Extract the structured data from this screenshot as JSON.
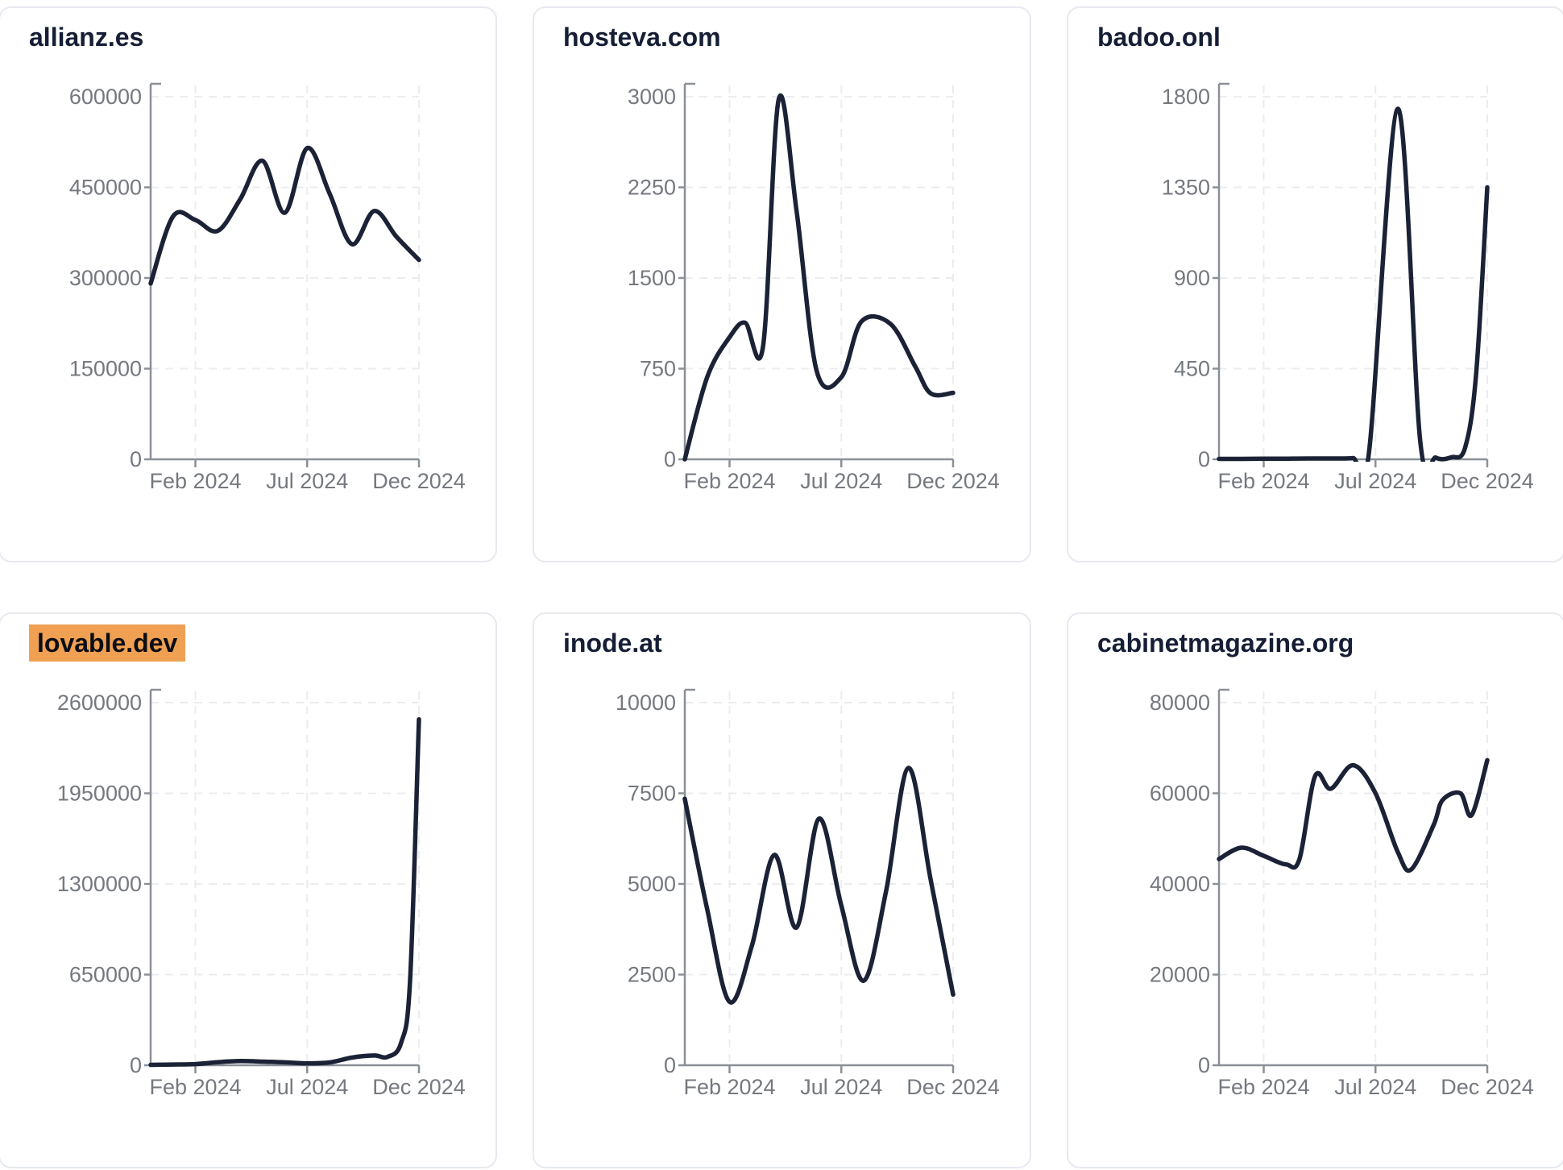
{
  "theme": {
    "line_color": "#1c2236",
    "title_color": "#161e36",
    "axis_color": "#8b9097",
    "tick_label_color": "#75797f",
    "gridline_color": "#ececf0",
    "card_border": "#e7e9f0",
    "highlight_bg": "#f0a053",
    "highlight_text": "#0b0e14",
    "background": "#ffffff"
  },
  "chart_data": [
    {
      "type": "line",
      "title": "allianz.es",
      "highlighted": false,
      "legend": "none",
      "grid": "dashed",
      "ylim": [
        0,
        600000
      ],
      "y_ticks": [
        0,
        150000,
        300000,
        450000,
        600000
      ],
      "x_ticks": [
        {
          "label": "Feb 2024",
          "month": 2
        },
        {
          "label": "Jul 2024",
          "month": 7
        },
        {
          "label": "Dec 2024",
          "month": 12
        }
      ],
      "points": [
        [
          0,
          291000
        ],
        [
          1,
          402000
        ],
        [
          2,
          396000
        ],
        [
          3,
          378000
        ],
        [
          4,
          430000
        ],
        [
          5,
          494000
        ],
        [
          6,
          408000
        ],
        [
          7,
          515000
        ],
        [
          8,
          440000
        ],
        [
          9,
          356000
        ],
        [
          10,
          411000
        ],
        [
          11,
          368000
        ],
        [
          12,
          330000
        ]
      ]
    },
    {
      "type": "line",
      "title": "hosteva.com",
      "highlighted": false,
      "legend": "none",
      "grid": "dashed",
      "ylim": [
        0,
        3000
      ],
      "y_ticks": [
        0,
        750,
        1500,
        2250,
        3000
      ],
      "x_ticks": [
        {
          "label": "Feb 2024",
          "month": 2
        },
        {
          "label": "Jul 2024",
          "month": 7
        },
        {
          "label": "Dec 2024",
          "month": 12
        }
      ],
      "points": [
        [
          0,
          0
        ],
        [
          1,
          680
        ],
        [
          2,
          1010
        ],
        [
          2.7,
          1130
        ],
        [
          3.5,
          935
        ],
        [
          4.2,
          2980
        ],
        [
          5,
          2050
        ],
        [
          5.9,
          730
        ],
        [
          7,
          680
        ],
        [
          7.9,
          1140
        ],
        [
          9.2,
          1120
        ],
        [
          10.3,
          770
        ],
        [
          11,
          545
        ],
        [
          12,
          550
        ]
      ]
    },
    {
      "type": "line",
      "title": "badoo.onl",
      "highlighted": false,
      "legend": "none",
      "grid": "dashed",
      "ylim": [
        0,
        1800
      ],
      "y_ticks": [
        0,
        450,
        900,
        1350,
        1800
      ],
      "x_ticks": [
        {
          "label": "Feb 2024",
          "month": 2
        },
        {
          "label": "Jul 2024",
          "month": 7
        },
        {
          "label": "Dec 2024",
          "month": 12
        }
      ],
      "points": [
        [
          0,
          2
        ],
        [
          1,
          2
        ],
        [
          2,
          3
        ],
        [
          3,
          3
        ],
        [
          4,
          4
        ],
        [
          5,
          4
        ],
        [
          6,
          6
        ],
        [
          6.7,
          25
        ],
        [
          8,
          1740
        ],
        [
          9,
          90
        ],
        [
          9.7,
          8
        ],
        [
          10.4,
          10
        ],
        [
          11,
          55
        ],
        [
          11.5,
          420
        ],
        [
          12,
          1350
        ]
      ]
    },
    {
      "type": "line",
      "title": "lovable.dev",
      "highlighted": true,
      "legend": "none",
      "grid": "dashed",
      "ylim": [
        0,
        2600000
      ],
      "y_ticks": [
        0,
        650000,
        1300000,
        1950000,
        2600000
      ],
      "x_ticks": [
        {
          "label": "Feb 2024",
          "month": 2
        },
        {
          "label": "Jul 2024",
          "month": 7
        },
        {
          "label": "Dec 2024",
          "month": 12
        }
      ],
      "points": [
        [
          0,
          3000
        ],
        [
          1,
          5000
        ],
        [
          2,
          8000
        ],
        [
          3,
          22000
        ],
        [
          4,
          30000
        ],
        [
          5,
          26000
        ],
        [
          6,
          21000
        ],
        [
          7,
          14000
        ],
        [
          8,
          20000
        ],
        [
          9,
          55000
        ],
        [
          10,
          70000
        ],
        [
          10.6,
          60000
        ],
        [
          11.2,
          160000
        ],
        [
          11.6,
          600000
        ],
        [
          12,
          2480000
        ]
      ]
    },
    {
      "type": "line",
      "title": "inode.at",
      "highlighted": false,
      "legend": "none",
      "grid": "dashed",
      "ylim": [
        0,
        10000
      ],
      "y_ticks": [
        0,
        2500,
        5000,
        7500,
        10000
      ],
      "x_ticks": [
        {
          "label": "Feb 2024",
          "month": 2
        },
        {
          "label": "Jul 2024",
          "month": 7
        },
        {
          "label": "Dec 2024",
          "month": 12
        }
      ],
      "points": [
        [
          0,
          7350
        ],
        [
          1,
          4300
        ],
        [
          2,
          1750
        ],
        [
          3,
          3300
        ],
        [
          4,
          5800
        ],
        [
          5,
          3800
        ],
        [
          6,
          6800
        ],
        [
          7,
          4400
        ],
        [
          8,
          2330
        ],
        [
          9,
          4800
        ],
        [
          10,
          8200
        ],
        [
          11,
          5100
        ],
        [
          12,
          1950
        ]
      ]
    },
    {
      "type": "line",
      "title": "cabinetmagazine.org",
      "highlighted": false,
      "legend": "none",
      "grid": "dashed",
      "ylim": [
        0,
        80000
      ],
      "y_ticks": [
        0,
        20000,
        40000,
        60000,
        80000
      ],
      "x_ticks": [
        {
          "label": "Feb 2024",
          "month": 2
        },
        {
          "label": "Jul 2024",
          "month": 7
        },
        {
          "label": "Dec 2024",
          "month": 12
        }
      ],
      "points": [
        [
          0,
          45500
        ],
        [
          1,
          48000
        ],
        [
          2,
          46200
        ],
        [
          3,
          44300
        ],
        [
          3.6,
          45500
        ],
        [
          4.3,
          63800
        ],
        [
          5,
          61000
        ],
        [
          6,
          66200
        ],
        [
          7,
          60000
        ],
        [
          8,
          47000
        ],
        [
          8.6,
          43200
        ],
        [
          9.6,
          53000
        ],
        [
          10,
          58500
        ],
        [
          10.8,
          60000
        ],
        [
          11.3,
          55200
        ],
        [
          12,
          67300
        ]
      ]
    }
  ]
}
